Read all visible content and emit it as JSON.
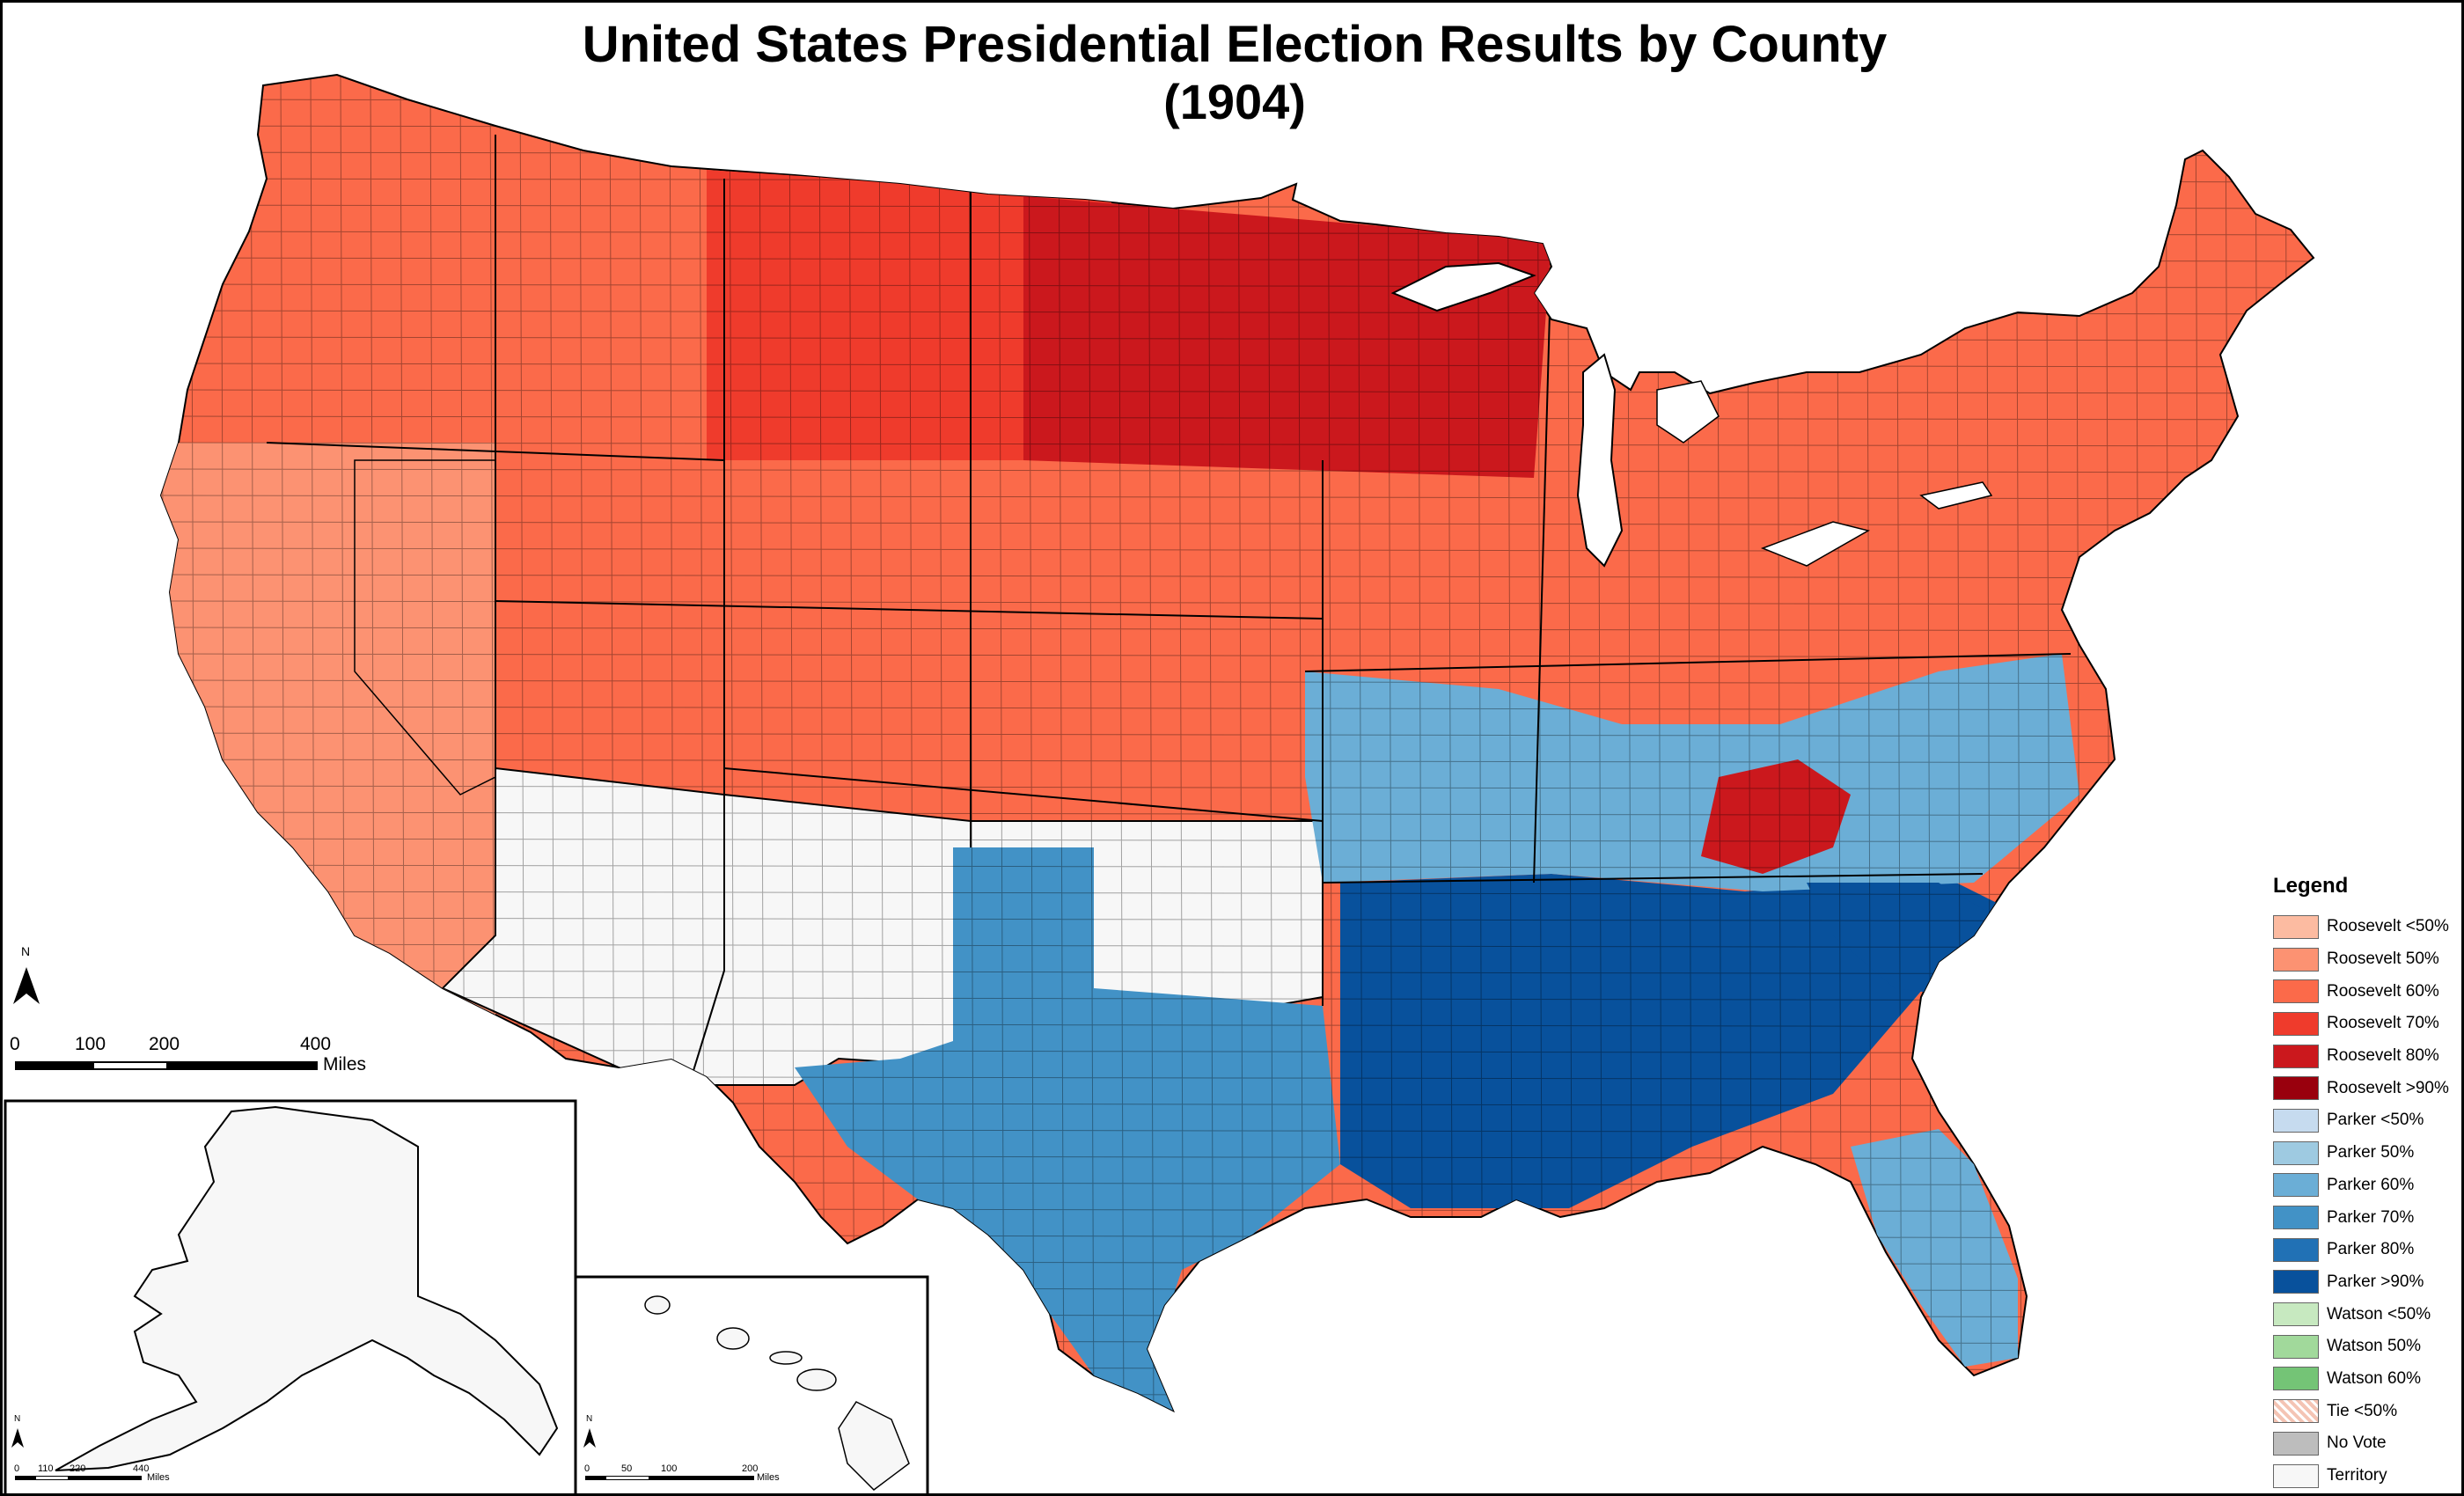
{
  "title": {
    "line1": "United States Presidential Election Results by County",
    "line2": "(1904)"
  },
  "legend": {
    "title": "Legend",
    "items": [
      {
        "label": "Roosevelt <50%",
        "color": "#fcbba1"
      },
      {
        "label": "Roosevelt 50%",
        "color": "#fc9272"
      },
      {
        "label": "Roosevelt 60%",
        "color": "#fb6a4a"
      },
      {
        "label": "Roosevelt 70%",
        "color": "#ef3b2c"
      },
      {
        "label": "Roosevelt 80%",
        "color": "#cb181d"
      },
      {
        "label": "Roosevelt >90%",
        "color": "#99000d"
      },
      {
        "label": "Parker <50%",
        "color": "#c6dbef"
      },
      {
        "label": "Parker 50%",
        "color": "#9ecae1"
      },
      {
        "label": "Parker 60%",
        "color": "#6baed6"
      },
      {
        "label": "Parker 70%",
        "color": "#4292c6"
      },
      {
        "label": "Parker 80%",
        "color": "#2171b5"
      },
      {
        "label": "Parker >90%",
        "color": "#08519c"
      },
      {
        "label": "Watson <50%",
        "color": "#c7e9c0"
      },
      {
        "label": "Watson 50%",
        "color": "#a1d99b"
      },
      {
        "label": "Watson 60%",
        "color": "#74c476"
      },
      {
        "label": "Tie <50%",
        "color": "#f4c4b4",
        "pattern": "hatch"
      },
      {
        "label": "No Vote",
        "color": "#bdbdbd"
      },
      {
        "label": "Territory",
        "color": "#f7f7f7"
      }
    ]
  },
  "scale_main": {
    "ticks": [
      "0",
      "100",
      "200",
      "400"
    ],
    "unit": "Miles"
  },
  "scale_alaska": {
    "ticks": [
      "0",
      "110",
      "220",
      "440"
    ],
    "unit": "Miles"
  },
  "scale_hawaii": {
    "ticks": [
      "0",
      "50",
      "100",
      "200"
    ],
    "unit": "Miles"
  },
  "north_arrow": {
    "label": "N"
  }
}
